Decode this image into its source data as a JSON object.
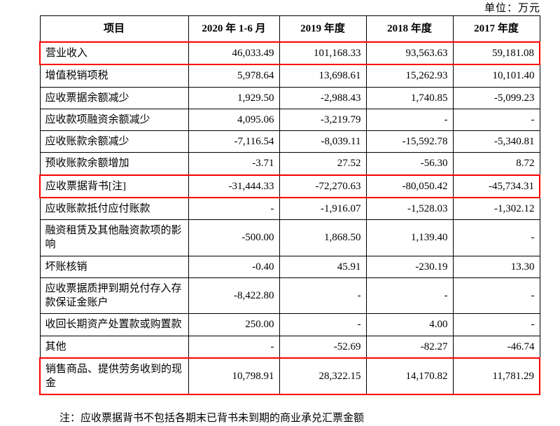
{
  "unit_label": "单位：万元",
  "footnote": "注：应收票据背书不包括各期末已背书未到期的商业承兑汇票金额",
  "colors": {
    "highlight_border": "#ff0000",
    "table_border": "#000000"
  },
  "table": {
    "headers": [
      "项目",
      "2020 年 1-6 月",
      "2019 年度",
      "2018 年度",
      "2017 年度"
    ],
    "rows": [
      {
        "label": "营业收入",
        "values": [
          "46,033.49",
          "101,168.33",
          "93,563.63",
          "59,181.08"
        ],
        "highlight": true
      },
      {
        "label": "增值税销项税",
        "values": [
          "5,978.64",
          "13,698.61",
          "15,262.93",
          "10,101.40"
        ],
        "highlight": false
      },
      {
        "label": "应收票据余额减少",
        "values": [
          "1,929.50",
          "-2,988.43",
          "1,740.85",
          "-5,099.23"
        ],
        "highlight": false
      },
      {
        "label": "应收款项融资余额减少",
        "values": [
          "4,095.06",
          "-3,219.79",
          "-",
          "-"
        ],
        "highlight": false
      },
      {
        "label": "应收账款余额减少",
        "values": [
          "-7,116.54",
          "-8,039.11",
          "-15,592.78",
          "-5,340.81"
        ],
        "highlight": false
      },
      {
        "label": "预收账款余额增加",
        "values": [
          "-3.71",
          "27.52",
          "-56.30",
          "8.72"
        ],
        "highlight": false
      },
      {
        "label": "应收票据背书[注]",
        "values": [
          "-31,444.33",
          "-72,270.63",
          "-80,050.42",
          "-45,734.31"
        ],
        "highlight": true
      },
      {
        "label": "应收账款抵付应付账款",
        "values": [
          "-",
          "-1,916.07",
          "-1,528.03",
          "-1,302.12"
        ],
        "highlight": false
      },
      {
        "label": "融资租赁及其他融资款项的影响",
        "values": [
          "-500.00",
          "1,868.50",
          "1,139.40",
          "-"
        ],
        "highlight": false
      },
      {
        "label": "坏账核销",
        "values": [
          "-0.40",
          "45.91",
          "-230.19",
          "13.30"
        ],
        "highlight": false
      },
      {
        "label": "应收票据质押到期兑付存入存款保证金账户",
        "values": [
          "-8,422.80",
          "-",
          "-",
          "-"
        ],
        "highlight": false
      },
      {
        "label": "收回长期资产处置款或购置款",
        "values": [
          "250.00",
          "-",
          "4.00",
          "-"
        ],
        "highlight": false
      },
      {
        "label": "其他",
        "values": [
          "-",
          "-52.69",
          "-82.27",
          "-46.74"
        ],
        "highlight": false
      },
      {
        "label": "销售商品、提供劳务收到的现金",
        "values": [
          "10,798.91",
          "28,322.15",
          "14,170.82",
          "11,781.29"
        ],
        "highlight": true
      }
    ]
  }
}
